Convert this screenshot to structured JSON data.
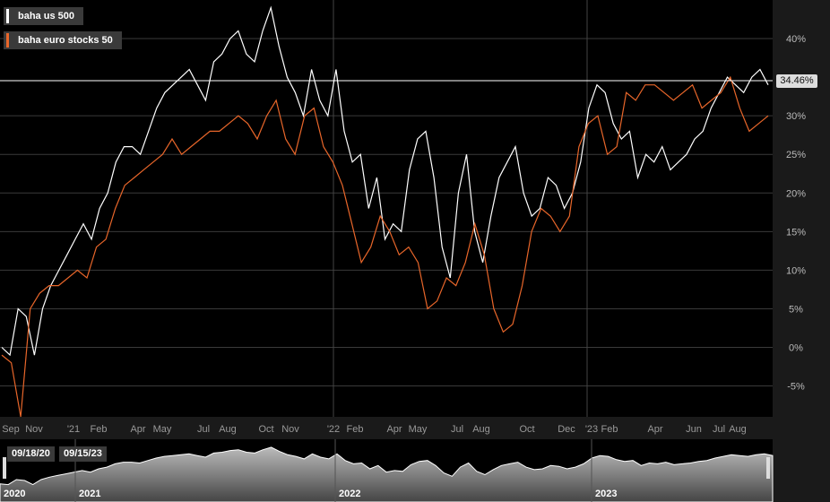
{
  "legend": [
    {
      "label": "baha us 500",
      "color": "#ffffff"
    },
    {
      "label": "baha euro stocks 50",
      "color": "#e8662a"
    }
  ],
  "current_value_label": "34.46%",
  "navigator": {
    "start_date": "09/18/20",
    "end_date": "09/15/23",
    "year_labels": [
      "2020",
      "2021",
      "2022",
      "2023"
    ]
  },
  "colors": {
    "background": "#000000",
    "grid": "#3a3a3a",
    "us500": "#ffffff",
    "euro50": "#e8662a"
  },
  "chart_data": {
    "type": "line",
    "x_tick_labels": [
      "Sep",
      "Nov",
      "'21",
      "Feb",
      "Apr",
      "May",
      "Jul",
      "Aug",
      "Oct",
      "Nov",
      "'22",
      "Feb",
      "Apr",
      "May",
      "Jul",
      "Aug",
      "Oct",
      "Dec",
      "'23",
      "Feb",
      "Apr",
      "Jun",
      "Jul",
      "Aug"
    ],
    "y_ticks": [
      -5,
      0,
      5,
      10,
      15,
      20,
      25,
      30,
      40
    ],
    "y_tick_labels": [
      "-5%",
      "0%",
      "5%",
      "10%",
      "15%",
      "20%",
      "25%",
      "30%",
      "40%"
    ],
    "ylim": [
      -9,
      45
    ],
    "grid": true,
    "legend_position": "top-left",
    "series": [
      {
        "name": "baha us 500",
        "color": "#ffffff",
        "values": [
          0,
          -1,
          5,
          4,
          -1,
          5,
          8,
          10,
          12,
          14,
          16,
          14,
          18,
          20,
          24,
          26,
          26,
          25,
          28,
          31,
          33,
          34,
          35,
          36,
          34,
          32,
          37,
          38,
          40,
          41,
          38,
          37,
          41,
          44,
          39,
          35,
          33,
          30,
          36,
          32,
          30,
          36,
          28,
          24,
          25,
          18,
          22,
          14,
          16,
          15,
          23,
          27,
          28,
          22,
          13,
          9,
          20,
          25,
          15,
          11,
          17,
          22,
          24,
          26,
          20,
          17,
          18,
          22,
          21,
          18,
          20,
          24,
          31,
          34,
          33,
          29,
          27,
          28,
          22,
          25,
          24,
          26,
          23,
          24,
          25,
          27,
          28,
          31,
          33,
          35,
          34,
          33,
          35,
          36,
          34
        ]
      },
      {
        "name": "baha euro stocks 50",
        "color": "#e8662a",
        "values": [
          -1,
          -2,
          -9,
          5,
          7,
          8,
          8,
          9,
          10,
          9,
          13,
          14,
          18,
          21,
          22,
          23,
          24,
          25,
          27,
          25,
          26,
          27,
          28,
          28,
          29,
          30,
          29,
          27,
          30,
          32,
          27,
          25,
          30,
          31,
          26,
          24,
          21,
          16,
          11,
          13,
          17,
          15,
          12,
          13,
          11,
          5,
          6,
          9,
          8,
          11,
          16,
          12,
          5,
          2,
          3,
          8,
          15,
          18,
          17,
          15,
          17,
          26,
          29,
          30,
          25,
          26,
          33,
          32,
          34,
          34,
          33,
          32,
          33,
          34,
          31,
          32,
          33,
          35,
          31,
          28,
          29,
          30
        ]
      }
    ]
  }
}
